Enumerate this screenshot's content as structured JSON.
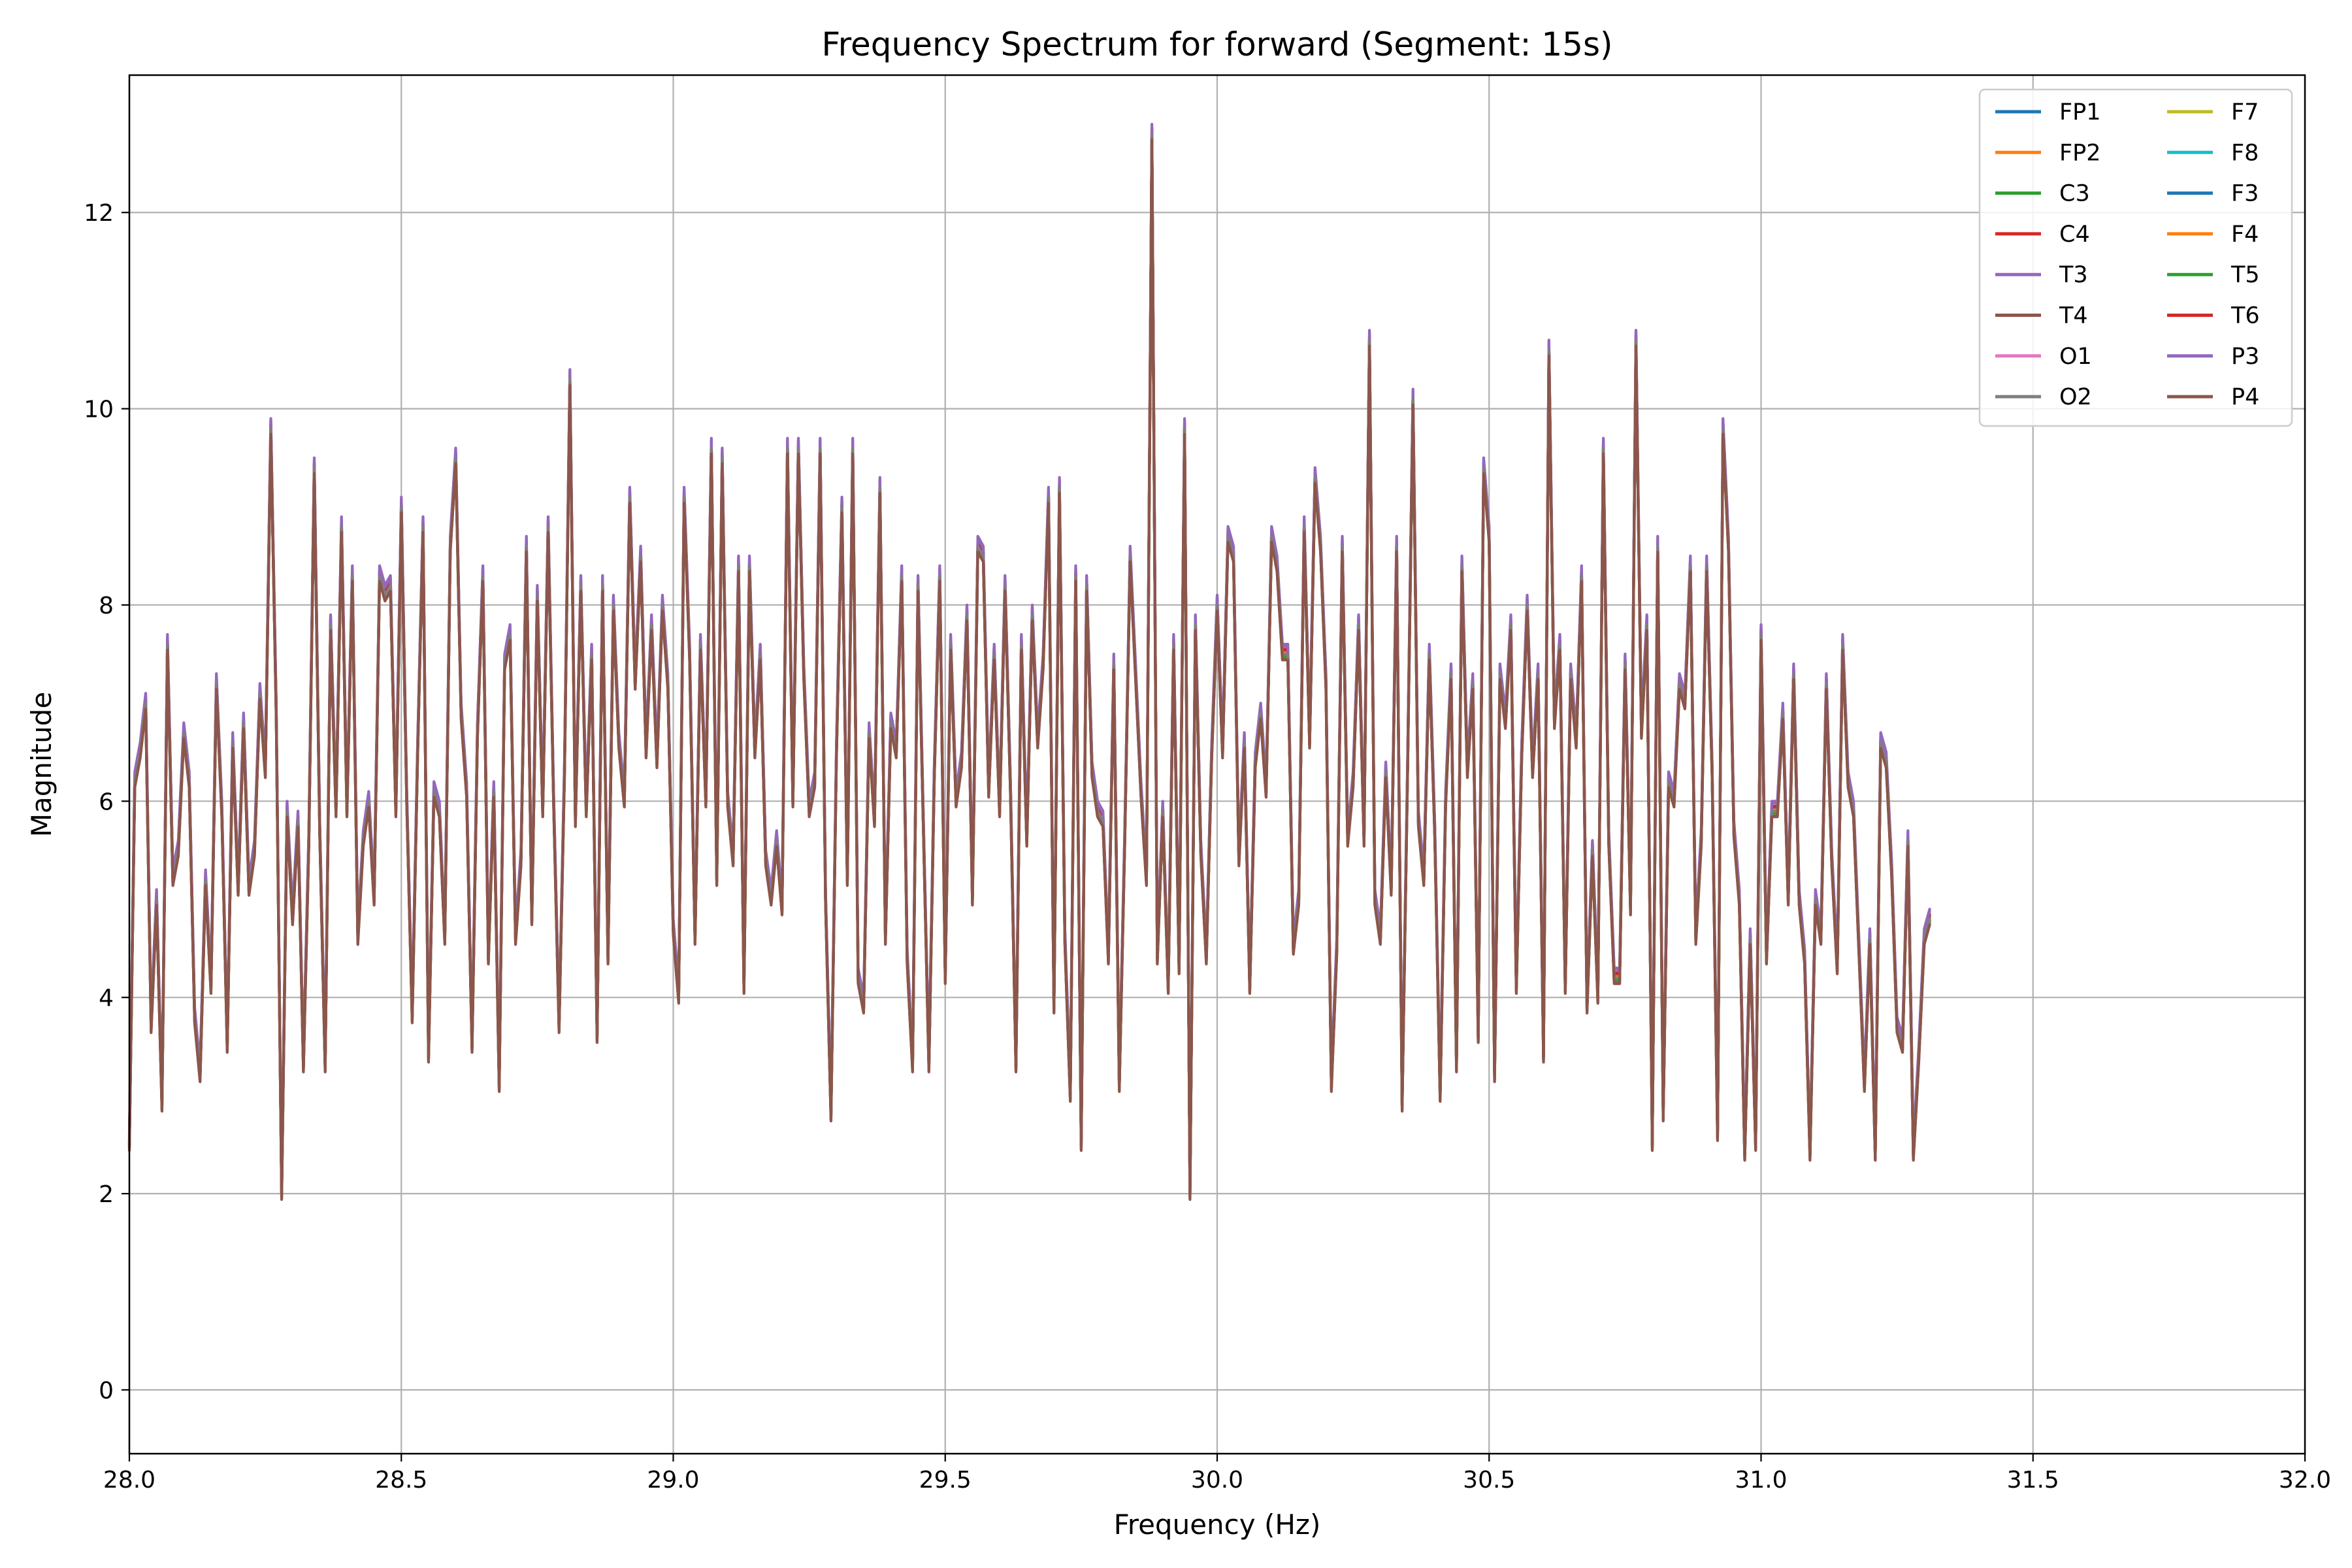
{
  "chart_data": {
    "type": "line",
    "title": "Frequency Spectrum for forward (Segment: 15s)",
    "xlabel": "Frequency (Hz)",
    "ylabel": "Magnitude",
    "xlim": [
      28.0,
      32.0
    ],
    "ylim": [
      -0.65,
      13.4
    ],
    "xticks": [
      28.0,
      28.5,
      29.0,
      29.5,
      30.0,
      30.5,
      31.0,
      31.5,
      32.0
    ],
    "xtick_labels": [
      "28.0",
      "28.5",
      "29.0",
      "29.5",
      "30.0",
      "30.5",
      "31.0",
      "31.5",
      "32.0"
    ],
    "yticks": [
      0,
      2,
      4,
      6,
      8,
      10,
      12
    ],
    "ytick_labels": [
      "0",
      "2",
      "4",
      "6",
      "8",
      "10",
      "12"
    ],
    "grid": true,
    "legend_position": "top-right",
    "legend_columns": 2,
    "x_step": 0.01,
    "series": [
      {
        "name": "FP1",
        "color": "#1f77b4"
      },
      {
        "name": "FP2",
        "color": "#ff7f0e"
      },
      {
        "name": "C3",
        "color": "#2ca02c"
      },
      {
        "name": "C4",
        "color": "#d62728"
      },
      {
        "name": "T3",
        "color": "#9467bd"
      },
      {
        "name": "T4",
        "color": "#8c564b"
      },
      {
        "name": "O1",
        "color": "#e377c2"
      },
      {
        "name": "O2",
        "color": "#7f7f7f"
      },
      {
        "name": "F7",
        "color": "#bcbd22"
      },
      {
        "name": "F8",
        "color": "#17becf"
      },
      {
        "name": "F3",
        "color": "#1f77b4"
      },
      {
        "name": "F4",
        "color": "#ff7f0e"
      },
      {
        "name": "T5",
        "color": "#2ca02c"
      },
      {
        "name": "T6",
        "color": "#d62728"
      },
      {
        "name": "P3",
        "color": "#9467bd"
      },
      {
        "name": "P4",
        "color": "#8c564b"
      }
    ],
    "values": [
      2.5,
      6.2,
      6.5,
      7.0,
      3.7,
      5.0,
      2.9,
      7.6,
      5.2,
      5.5,
      6.7,
      6.2,
      3.8,
      3.2,
      5.2,
      4.1,
      7.2,
      5.9,
      3.5,
      6.6,
      5.1,
      6.8,
      5.1,
      5.5,
      7.1,
      6.3,
      9.8,
      6.9,
      2.0,
      5.9,
      4.8,
      5.8,
      3.3,
      5.6,
      9.4,
      5.7,
      3.3,
      7.8,
      5.9,
      8.8,
      5.9,
      8.3,
      4.6,
      5.6,
      6.0,
      5.0,
      8.3,
      8.1,
      8.2,
      5.9,
      9.0,
      6.0,
      3.8,
      6.5,
      8.8,
      3.4,
      6.1,
      5.9,
      4.6,
      8.6,
      9.5,
      6.9,
      6.1,
      3.5,
      6.7,
      8.3,
      4.4,
      6.1,
      3.1,
      7.4,
      7.7,
      4.6,
      5.4,
      8.6,
      4.8,
      8.1,
      5.9,
      8.8,
      6.0,
      3.7,
      6.3,
      10.3,
      5.8,
      8.2,
      5.9,
      7.5,
      3.6,
      8.2,
      4.4,
      8.0,
      6.6,
      6.0,
      9.1,
      7.2,
      8.5,
      6.5,
      7.8,
      6.4,
      8.0,
      7.2,
      4.7,
      4.0,
      9.1,
      7.5,
      4.6,
      7.6,
      6.0,
      9.6,
      5.2,
      9.5,
      6.0,
      5.4,
      8.4,
      4.1,
      8.4,
      6.5,
      7.5,
      5.4,
      5.0,
      5.6,
      4.9,
      9.6,
      6.0,
      9.6,
      7.3,
      5.9,
      6.2,
      9.6,
      5.0,
      2.8,
      6.5,
      9.0,
      5.2,
      9.6,
      4.2,
      3.9,
      6.7,
      5.8,
      9.2,
      4.6,
      6.8,
      6.5,
      8.3,
      4.4,
      3.3,
      8.2,
      5.7,
      3.3,
      6.3,
      8.3,
      4.2,
      7.6,
      6.0,
      6.4,
      7.9,
      5.0,
      8.6,
      8.5,
      6.1,
      7.5,
      5.9,
      8.2,
      6.1,
      3.3,
      7.6,
      5.6,
      7.9,
      6.6,
      7.4,
      9.1,
      3.9,
      9.2,
      4.6,
      3.0,
      8.3,
      2.5,
      8.2,
      6.3,
      5.9,
      5.8,
      4.4,
      7.4,
      3.1,
      5.6,
      8.5,
      7.3,
      6.1,
      5.2,
      12.8,
      4.4,
      5.9,
      4.1,
      7.6,
      4.3,
      9.8,
      2.0,
      7.8,
      5.5,
      4.4,
      6.5,
      8.0,
      6.5,
      8.7,
      8.5,
      5.4,
      6.6,
      4.1,
      6.4,
      6.9,
      6.1,
      8.7,
      8.4,
      7.5,
      7.5,
      4.5,
      5.0,
      8.8,
      6.6,
      9.3,
      8.6,
      7.2,
      3.1,
      4.5,
      8.6,
      5.6,
      6.2,
      7.8,
      5.6,
      10.7,
      5.0,
      4.6,
      6.3,
      5.1,
      8.6,
      2.9,
      6.3,
      10.1,
      5.8,
      5.2,
      7.5,
      5.7,
      3.0,
      6.0,
      7.3,
      3.3,
      8.4,
      6.3,
      7.2,
      3.6,
      9.4,
      8.7,
      3.2,
      7.3,
      6.8,
      7.8,
      4.1,
      6.5,
      8.0,
      6.3,
      7.3,
      3.4,
      10.6,
      6.8,
      7.6,
      4.1,
      7.3,
      6.6,
      8.3,
      3.9,
      5.5,
      4.0,
      9.6,
      5.6,
      4.2,
      4.2,
      7.4,
      4.9,
      10.7,
      6.7,
      7.8,
      2.5,
      8.6,
      2.8,
      6.2,
      6.0,
      7.2,
      7.0,
      8.4,
      4.6,
      5.6,
      8.4,
      6.3,
      2.6,
      9.8,
      8.6,
      5.7,
      5.0,
      2.4,
      4.6,
      2.5,
      7.7,
      4.4,
      5.9,
      5.9,
      6.9,
      5.0,
      7.3,
      5.0,
      4.4,
      2.4,
      5.0,
      4.6,
      7.2,
      5.4,
      4.3,
      7.6,
      6.2,
      5.9,
      4.5,
      3.1,
      4.6,
      2.4,
      6.6,
      6.4,
      5.3,
      3.7,
      3.5,
      5.6,
      2.4,
      3.4,
      4.6,
      4.8
    ]
  }
}
